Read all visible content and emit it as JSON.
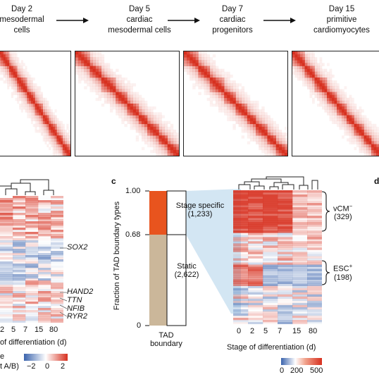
{
  "stages": [
    {
      "label": "Day 2\nmesodermal\ncells"
    },
    {
      "label": "Day 5\ncardiac\nmesodermal cells"
    },
    {
      "label": "Day 7\ncardiac\nprogenitors"
    },
    {
      "label": "Day 15\nprimitive\ncardiomyocytes"
    }
  ],
  "panel_left": {
    "genes": [
      "SOX2",
      "HAND2",
      "TTN",
      "NFIB",
      "RYR2"
    ],
    "x_ticks": [
      "2",
      "5",
      "7",
      "15",
      "80"
    ],
    "x_label": "of differentiation (d)",
    "legend_title": "e",
    "legend_sub": "t A/B)",
    "legend_ticks": [
      "−2",
      "0",
      "2"
    ]
  },
  "panel_c": {
    "letter": "c",
    "ylabel": "Fraction of TAD boundary types",
    "y_ticks": [
      "1.00",
      "0.68",
      "0"
    ],
    "stack_label": "TAD\nboundary",
    "stage_specific": "Stage specific\n(1,233)",
    "static": "Static\n(2,622)",
    "heatmap_x_ticks": [
      "0",
      "2",
      "5",
      "7",
      "15",
      "80"
    ],
    "heatmap_xlabel": "Stage of differentiation (d)",
    "cluster1_label": "vCM",
    "cluster1_sup": "−",
    "cluster1_count": "(329)",
    "cluster2_label": "ESC",
    "cluster2_sup": "+",
    "cluster2_count": "(198)",
    "colorbar_ticks": [
      "0",
      "200",
      "500"
    ]
  },
  "colors": {
    "red": "#d7301f",
    "blue": "#4a6fb0",
    "orange": "#e8541e",
    "tan": "#cbb79a",
    "shade": "#d3e6f3"
  }
}
